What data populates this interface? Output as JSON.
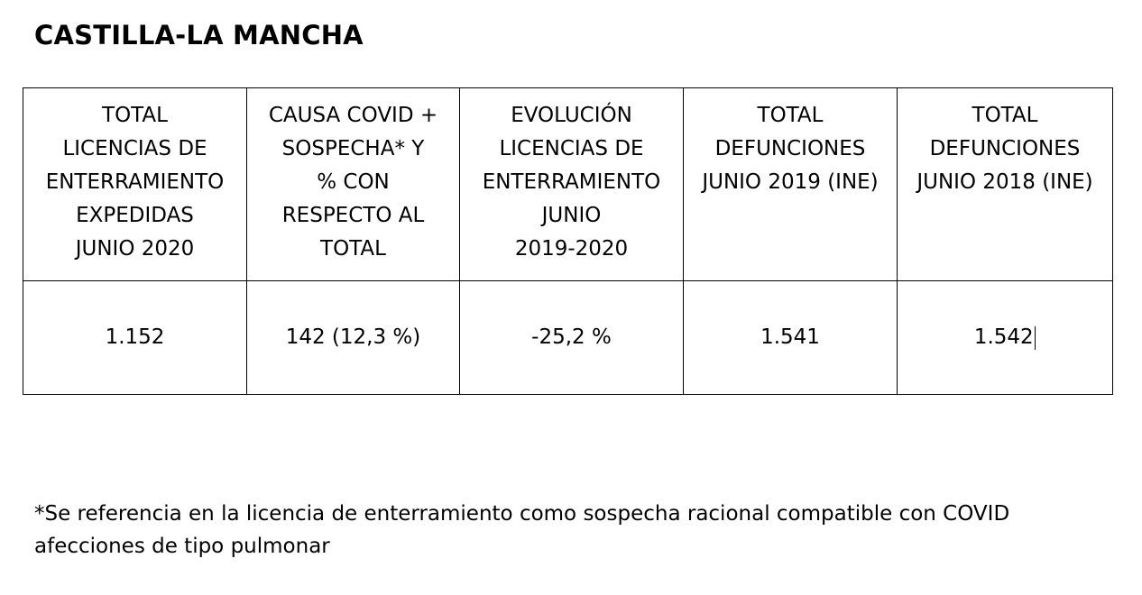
{
  "title": "CASTILLA-LA MANCHA",
  "table": {
    "headers": [
      "TOTAL\nLICENCIAS DE\nENTERRAMIENTO\nEXPEDIDAS\nJUNIO 2020",
      "CAUSA COVID +\nSOSPECHA* Y\n% CON\nRESPECTO AL\nTOTAL",
      "EVOLUCIÓN\nLICENCIAS DE\nENTERRAMIENTO\nJUNIO\n2019-2020",
      "TOTAL\nDEFUNCIONES\nJUNIO 2019 (INE)",
      "TOTAL\nDEFUNCIONES\nJUNIO 2018 (INE)"
    ],
    "values": [
      "1.152",
      "142 (12,3 %)",
      "-25,2 %",
      "1.541",
      "1.542"
    ]
  },
  "footnote": "*Se referencia en la licencia de enterramiento como sospecha racional compatible con COVID\nafecciones de tipo pulmonar"
}
